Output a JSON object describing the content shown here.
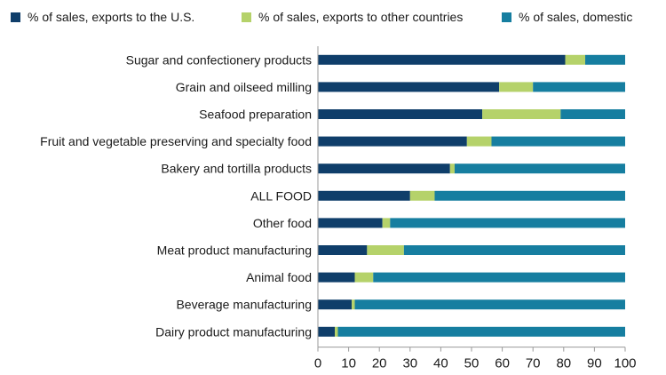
{
  "chart_data": {
    "type": "bar",
    "orientation": "horizontal",
    "stacked": true,
    "title": "",
    "xlabel": "",
    "ylabel": "",
    "xlim": [
      0,
      100
    ],
    "xticks": [
      0,
      10,
      20,
      30,
      40,
      50,
      60,
      70,
      80,
      90,
      100
    ],
    "grid": false,
    "legend_position": "top",
    "categories": [
      "Sugar and confectionery products",
      "Grain and oilseed milling",
      "Seafood preparation",
      "Fruit and vegetable preserving and specialty food",
      "Bakery and tortilla products",
      "ALL FOOD",
      "Other food",
      "Meat product manufacturing",
      "Animal food",
      "Beverage manufacturing",
      "Dairy product manufacturing"
    ],
    "series": [
      {
        "name": "% of sales, exports to the U.S.",
        "color": "#0f3e6a",
        "values": [
          80.5,
          59,
          53.5,
          48.5,
          43,
          30,
          21,
          16,
          12,
          11,
          5.5
        ]
      },
      {
        "name": "% of sales, exports to other countries",
        "color": "#b5d26a",
        "values": [
          6.5,
          11,
          25.5,
          8,
          1.5,
          8,
          2.5,
          12,
          6,
          1,
          1
        ]
      },
      {
        "name": "% of sales, domestic",
        "color": "#167ea0",
        "values": [
          13,
          30,
          21,
          43.5,
          55.5,
          62,
          76.5,
          72,
          82,
          88,
          93.5
        ]
      }
    ]
  }
}
